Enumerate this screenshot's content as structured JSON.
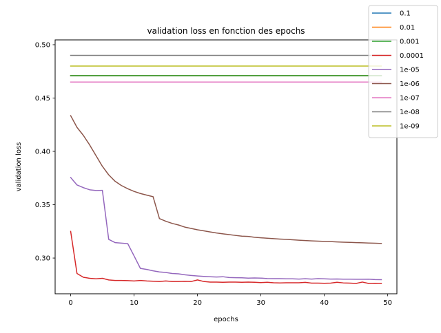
{
  "chart_data": {
    "type": "line",
    "title": "validation loss en fonction des epochs",
    "xlabel": "epochs",
    "ylabel": "validation loss",
    "xlim": [
      -2.45,
      51.45
    ],
    "ylim": [
      0.2665,
      0.5045
    ],
    "xticks": [
      0,
      10,
      20,
      30,
      40,
      50
    ],
    "xtick_labels": [
      "0",
      "10",
      "20",
      "30",
      "40",
      "50"
    ],
    "yticks": [
      0.3,
      0.35,
      0.4,
      0.45,
      0.5
    ],
    "ytick_labels": [
      "0.30",
      "0.35",
      "0.40",
      "0.45",
      "0.50"
    ],
    "grid": false,
    "legend_position": "top-right",
    "x": [
      0,
      1,
      2,
      3,
      4,
      5,
      6,
      7,
      8,
      9,
      10,
      11,
      12,
      13,
      14,
      15,
      16,
      17,
      18,
      19,
      20,
      21,
      22,
      23,
      24,
      25,
      26,
      27,
      28,
      29,
      30,
      31,
      32,
      33,
      34,
      35,
      36,
      37,
      38,
      39,
      40,
      41,
      42,
      43,
      44,
      45,
      46,
      47,
      48,
      49
    ],
    "series": [
      {
        "name": "0.1",
        "color": "#1f77b4",
        "values": [
          0.471,
          0.471,
          0.471,
          0.471,
          0.471,
          0.471,
          0.471,
          0.471,
          0.471,
          0.471,
          0.471,
          0.471,
          0.471,
          0.471,
          0.471,
          0.471,
          0.471,
          0.471,
          0.471,
          0.471,
          0.471,
          0.471,
          0.471,
          0.471,
          0.471,
          0.471,
          0.471,
          0.471,
          0.471,
          0.471,
          0.471,
          0.471,
          0.471,
          0.471,
          0.471,
          0.471,
          0.471,
          0.471,
          0.471,
          0.471,
          0.471,
          0.471,
          0.471,
          0.471,
          0.471,
          0.471,
          0.471,
          0.471,
          0.471,
          0.471
        ]
      },
      {
        "name": "0.01",
        "color": "#ff7f0e",
        "values": [
          0.471,
          0.471,
          0.471,
          0.471,
          0.471,
          0.471,
          0.471,
          0.471,
          0.471,
          0.471,
          0.471,
          0.471,
          0.471,
          0.471,
          0.471,
          0.471,
          0.471,
          0.471,
          0.471,
          0.471,
          0.471,
          0.471,
          0.471,
          0.471,
          0.471,
          0.471,
          0.471,
          0.471,
          0.471,
          0.471,
          0.471,
          0.471,
          0.471,
          0.471,
          0.471,
          0.471,
          0.471,
          0.471,
          0.471,
          0.471,
          0.471,
          0.471,
          0.471,
          0.471,
          0.471,
          0.471,
          0.471,
          0.471,
          0.471,
          0.471
        ]
      },
      {
        "name": "0.001",
        "color": "#2ca02c",
        "values": [
          0.471,
          0.471,
          0.471,
          0.471,
          0.471,
          0.471,
          0.471,
          0.471,
          0.471,
          0.471,
          0.471,
          0.471,
          0.471,
          0.471,
          0.471,
          0.471,
          0.471,
          0.471,
          0.471,
          0.471,
          0.471,
          0.471,
          0.471,
          0.471,
          0.471,
          0.471,
          0.471,
          0.471,
          0.471,
          0.471,
          0.471,
          0.471,
          0.471,
          0.471,
          0.471,
          0.471,
          0.471,
          0.471,
          0.471,
          0.471,
          0.471,
          0.471,
          0.471,
          0.471,
          0.471,
          0.471,
          0.471,
          0.471,
          0.471,
          0.471
        ]
      },
      {
        "name": "0.0001",
        "color": "#d62728",
        "values": [
          0.325,
          0.2855,
          0.282,
          0.281,
          0.2805,
          0.281,
          0.2795,
          0.279,
          0.279,
          0.2788,
          0.2785,
          0.279,
          0.2785,
          0.2783,
          0.278,
          0.2785,
          0.278,
          0.278,
          0.2782,
          0.278,
          0.2795,
          0.278,
          0.2775,
          0.2775,
          0.2773,
          0.2775,
          0.2775,
          0.2773,
          0.2775,
          0.2773,
          0.277,
          0.2773,
          0.2768,
          0.2767,
          0.2768,
          0.2768,
          0.2768,
          0.2772,
          0.2765,
          0.2765,
          0.2763,
          0.2765,
          0.2773,
          0.2767,
          0.2765,
          0.2762,
          0.2775,
          0.2762,
          0.2763,
          0.2762
        ]
      },
      {
        "name": "1e-05",
        "color": "#9467bd",
        "values": [
          0.3755,
          0.3685,
          0.366,
          0.364,
          0.3633,
          0.3635,
          0.3175,
          0.3145,
          0.314,
          0.3135,
          0.302,
          0.2903,
          0.2893,
          0.288,
          0.287,
          0.2865,
          0.2855,
          0.2852,
          0.2843,
          0.2837,
          0.2832,
          0.2828,
          0.2825,
          0.2822,
          0.2825,
          0.2817,
          0.2816,
          0.2815,
          0.2812,
          0.2813,
          0.2812,
          0.2808,
          0.2807,
          0.2807,
          0.2805,
          0.2805,
          0.2803,
          0.2806,
          0.2803,
          0.2807,
          0.2805,
          0.2803,
          0.2804,
          0.2802,
          0.2802,
          0.2801,
          0.2801,
          0.2802,
          0.2798,
          0.2797
        ]
      },
      {
        "name": "1e-06",
        "color": "#8c564b",
        "values": [
          0.4335,
          0.4225,
          0.415,
          0.406,
          0.396,
          0.386,
          0.378,
          0.372,
          0.368,
          0.365,
          0.3625,
          0.3605,
          0.359,
          0.3575,
          0.337,
          0.3345,
          0.3325,
          0.331,
          0.329,
          0.3278,
          0.3265,
          0.3255,
          0.3245,
          0.3235,
          0.3227,
          0.322,
          0.3212,
          0.3205,
          0.3203,
          0.3195,
          0.319,
          0.3186,
          0.3182,
          0.3178,
          0.3175,
          0.3171,
          0.3167,
          0.3164,
          0.3161,
          0.3158,
          0.3156,
          0.3154,
          0.3151,
          0.3149,
          0.3147,
          0.3145,
          0.3143,
          0.3141,
          0.3139,
          0.3137
        ]
      },
      {
        "name": "1e-07",
        "color": "#e377c2",
        "values": [
          0.465,
          0.465,
          0.465,
          0.465,
          0.465,
          0.465,
          0.465,
          0.465,
          0.465,
          0.465,
          0.465,
          0.465,
          0.465,
          0.465,
          0.465,
          0.465,
          0.465,
          0.465,
          0.465,
          0.465,
          0.465,
          0.465,
          0.465,
          0.465,
          0.465,
          0.465,
          0.465,
          0.465,
          0.465,
          0.465,
          0.465,
          0.465,
          0.465,
          0.465,
          0.465,
          0.465,
          0.465,
          0.465,
          0.465,
          0.465,
          0.465,
          0.465,
          0.465,
          0.465,
          0.465,
          0.465,
          0.465,
          0.465,
          0.465,
          0.465
        ]
      },
      {
        "name": "1e-08",
        "color": "#7f7f7f",
        "values": [
          0.49,
          0.49,
          0.49,
          0.49,
          0.49,
          0.49,
          0.49,
          0.49,
          0.49,
          0.49,
          0.49,
          0.49,
          0.49,
          0.49,
          0.49,
          0.49,
          0.49,
          0.49,
          0.49,
          0.49,
          0.49,
          0.49,
          0.49,
          0.49,
          0.49,
          0.49,
          0.49,
          0.49,
          0.49,
          0.49,
          0.49,
          0.49,
          0.49,
          0.49,
          0.49,
          0.49,
          0.49,
          0.49,
          0.49,
          0.49,
          0.49,
          0.49,
          0.49,
          0.49,
          0.49,
          0.49,
          0.49,
          0.49,
          0.49,
          0.49
        ]
      },
      {
        "name": "1e-09",
        "color": "#bcbd22",
        "values": [
          0.48,
          0.48,
          0.48,
          0.48,
          0.48,
          0.48,
          0.48,
          0.48,
          0.48,
          0.48,
          0.48,
          0.48,
          0.48,
          0.48,
          0.48,
          0.48,
          0.48,
          0.48,
          0.48,
          0.48,
          0.48,
          0.48,
          0.48,
          0.48,
          0.48,
          0.48,
          0.48,
          0.48,
          0.48,
          0.48,
          0.48,
          0.48,
          0.48,
          0.48,
          0.48,
          0.48,
          0.48,
          0.48,
          0.48,
          0.48,
          0.48,
          0.48,
          0.48,
          0.48,
          0.48,
          0.48,
          0.48,
          0.48,
          0.48,
          0.48
        ]
      }
    ]
  }
}
